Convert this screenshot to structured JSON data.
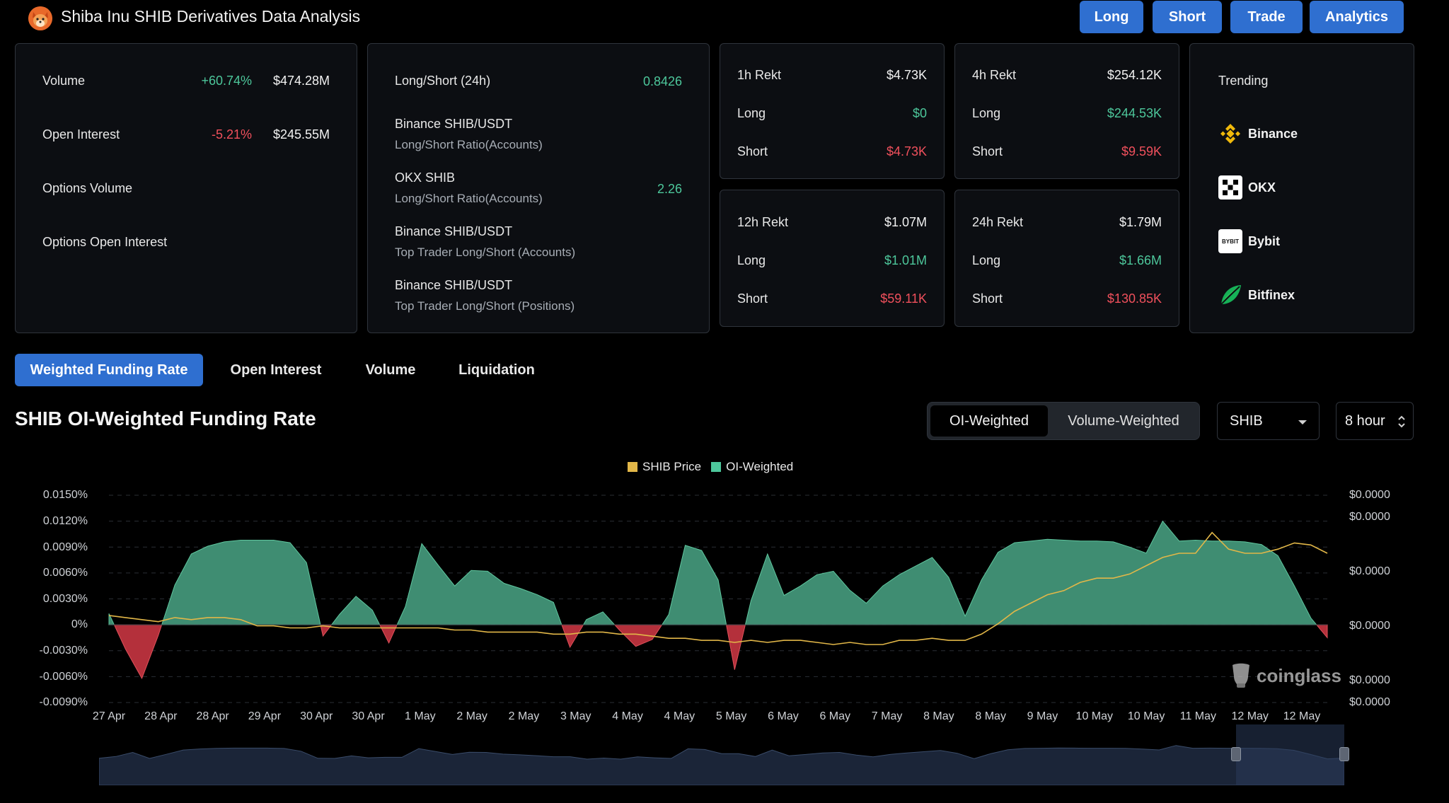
{
  "header": {
    "title": "Shiba Inu SHIB Derivatives Data Analysis",
    "buttons": [
      "Long",
      "Short",
      "Trade",
      "Analytics"
    ]
  },
  "overview": {
    "rows": [
      {
        "label": "Volume",
        "change": "+60.74%",
        "value": "$474.28M"
      },
      {
        "label": "Open Interest",
        "change": "-5.21%",
        "value": "$245.55M"
      },
      {
        "label": "Options Volume",
        "change": "",
        "value": ""
      },
      {
        "label": "Options Open Interest",
        "change": "",
        "value": ""
      }
    ]
  },
  "longshort": {
    "title": "Long/Short (24h)",
    "title_value": "0.8426",
    "rows": [
      {
        "name": "Binance SHIB/USDT",
        "sub": "Long/Short Ratio(Accounts)",
        "value": ""
      },
      {
        "name": "OKX SHIB",
        "sub": "Long/Short Ratio(Accounts)",
        "value": "2.26"
      },
      {
        "name": "Binance SHIB/USDT",
        "sub": "Top Trader Long/Short (Accounts)",
        "value": ""
      },
      {
        "name": "Binance SHIB/USDT",
        "sub": "Top Trader Long/Short (Positions)",
        "value": ""
      }
    ]
  },
  "rekt": [
    {
      "title": "1h Rekt",
      "total": "$4.73K",
      "long_label": "Long",
      "long": "$0",
      "short_label": "Short",
      "short": "$4.73K"
    },
    {
      "title": "4h Rekt",
      "total": "$254.12K",
      "long_label": "Long",
      "long": "$244.53K",
      "short_label": "Short",
      "short": "$9.59K"
    },
    {
      "title": "12h Rekt",
      "total": "$1.07M",
      "long_label": "Long",
      "long": "$1.01M",
      "short_label": "Short",
      "short": "$59.11K"
    },
    {
      "title": "24h Rekt",
      "total": "$1.79M",
      "long_label": "Long",
      "long": "$1.66M",
      "short_label": "Short",
      "short": "$130.85K"
    }
  ],
  "trending": {
    "title": "Trending",
    "items": [
      {
        "name": "Binance",
        "icon": "binance-icon"
      },
      {
        "name": "OKX",
        "icon": "okx-icon"
      },
      {
        "name": "Bybit",
        "icon": "bybit-icon",
        "icon_text": "BYBIT"
      },
      {
        "name": "Bitfinex",
        "icon": "bitfinex-icon"
      }
    ]
  },
  "tabs": [
    "Weighted Funding Rate",
    "Open Interest",
    "Volume",
    "Liquidation"
  ],
  "section": {
    "title": "SHIB OI-Weighted Funding Rate",
    "toggle": [
      "OI-Weighted",
      "Volume-Weighted"
    ],
    "coin_select": "SHIB",
    "interval_select": "8 hour",
    "watermark": "coinglass"
  },
  "colors": {
    "accent": "#2f6fd0",
    "positive": "#4a9c7d",
    "negative": "#b8303c",
    "price": "#e2b748"
  },
  "chart_data": {
    "type": "area",
    "legend": [
      "SHIB Price",
      "OI-Weighted"
    ],
    "legend_placement": "top-center",
    "y_left_ticks": [
      "0.0150%",
      "0.0120%",
      "0.0090%",
      "0.0060%",
      "0.0030%",
      "0%",
      "-0.0030%",
      "-0.0060%",
      "-0.0090%"
    ],
    "y_right_ticks": [
      "$0.0000",
      "$0.0000",
      "$0.0000",
      "$0.0000",
      "$0.0000",
      "$0.0000"
    ],
    "x_ticks": [
      "27 Apr",
      "28 Apr",
      "28 Apr",
      "29 Apr",
      "30 Apr",
      "30 Apr",
      "1 May",
      "2 May",
      "2 May",
      "3 May",
      "4 May",
      "4 May",
      "5 May",
      "6 May",
      "6 May",
      "7 May",
      "8 May",
      "8 May",
      "9 May",
      "10 May",
      "10 May",
      "11 May",
      "12 May",
      "12 May"
    ],
    "ylim": [
      -0.009,
      0.015
    ],
    "grid": true,
    "series": [
      {
        "name": "OI-Weighted",
        "unit": "%",
        "values": [
          0.0013,
          -0.0028,
          -0.0062,
          -0.0012,
          0.0046,
          0.0082,
          0.0091,
          0.0096,
          0.0098,
          0.0098,
          0.0098,
          0.0095,
          0.0072,
          -0.0013,
          0.0012,
          0.0033,
          0.0017,
          -0.0021,
          0.0021,
          0.0094,
          0.0069,
          0.0045,
          0.0063,
          0.0062,
          0.0048,
          0.0042,
          0.0035,
          0.0026,
          -0.0026,
          0.0006,
          0.0015,
          -0.0006,
          -0.0025,
          -0.0017,
          0.0012,
          0.0092,
          0.0086,
          0.0052,
          -0.0052,
          0.0028,
          0.0082,
          0.0034,
          0.0045,
          0.0058,
          0.0062,
          0.004,
          0.0025,
          0.0045,
          0.0058,
          0.0068,
          0.0078,
          0.0055,
          0.001,
          0.0052,
          0.0084,
          0.0095,
          0.0097,
          0.0099,
          0.0098,
          0.0097,
          0.0097,
          0.0096,
          0.009,
          0.0083,
          0.012,
          0.0097,
          0.0098,
          0.0097,
          0.0097,
          0.0096,
          0.0093,
          0.008,
          0.0045,
          0.0008,
          -0.0015
        ]
      },
      {
        "name": "SHIB Price",
        "unit": "relative",
        "values": [
          0.42,
          0.41,
          0.4,
          0.39,
          0.41,
          0.4,
          0.41,
          0.41,
          0.4,
          0.37,
          0.37,
          0.36,
          0.36,
          0.37,
          0.36,
          0.36,
          0.36,
          0.36,
          0.36,
          0.36,
          0.36,
          0.35,
          0.35,
          0.34,
          0.34,
          0.34,
          0.34,
          0.33,
          0.33,
          0.34,
          0.34,
          0.33,
          0.33,
          0.32,
          0.31,
          0.31,
          0.3,
          0.3,
          0.29,
          0.3,
          0.29,
          0.3,
          0.3,
          0.29,
          0.28,
          0.29,
          0.28,
          0.28,
          0.3,
          0.3,
          0.31,
          0.3,
          0.3,
          0.33,
          0.38,
          0.44,
          0.48,
          0.52,
          0.54,
          0.58,
          0.6,
          0.6,
          0.62,
          0.66,
          0.7,
          0.72,
          0.72,
          0.82,
          0.74,
          0.72,
          0.72,
          0.74,
          0.77,
          0.76,
          0.72
        ]
      }
    ]
  }
}
